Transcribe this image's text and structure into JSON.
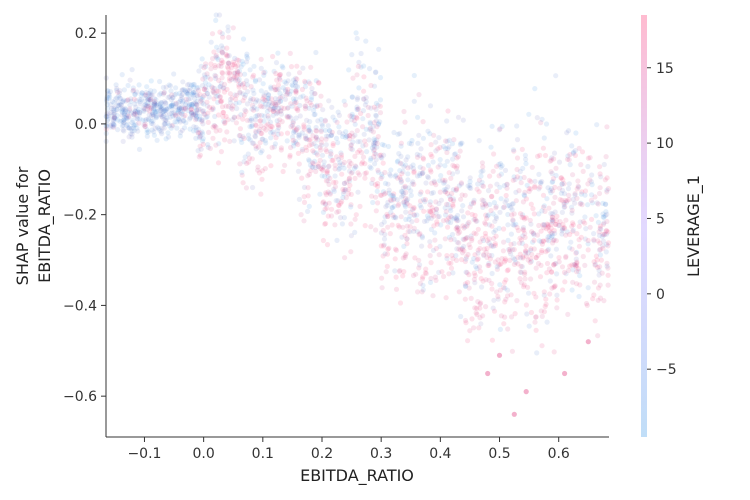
{
  "chart_data": {
    "type": "scatter",
    "title": "",
    "xlabel": "EBITDA_RATIO",
    "ylabel_lines": [
      "SHAP value for",
      "EBITDA_RATIO"
    ],
    "xlim": [
      -0.165,
      0.685
    ],
    "ylim": [
      -0.69,
      0.24
    ],
    "xticks": [
      -0.1,
      0.0,
      0.1,
      0.2,
      0.3,
      0.4,
      0.5,
      0.6
    ],
    "xtick_labels": [
      "−0.1",
      "0.0",
      "0.1",
      "0.2",
      "0.3",
      "0.4",
      "0.5",
      "0.6"
    ],
    "yticks": [
      0.2,
      0.0,
      -0.2,
      -0.4,
      -0.6
    ],
    "ytick_labels": [
      "0.2",
      "0.0",
      "−0.2",
      "−0.4",
      "−0.6"
    ],
    "grid": false,
    "color_feature": "LEVERAGE_1",
    "colorbar": {
      "label": "LEVERAGE_1",
      "range": [
        -9.5,
        18.5
      ],
      "ticks": [
        15,
        10,
        5,
        0,
        -5
      ],
      "tick_labels": [
        "15",
        "10",
        "5",
        "0",
        "−5"
      ],
      "color_low": "#1e88e5",
      "color_high": "#ff0d57"
    },
    "point_alpha": 0.12,
    "segments": [
      {
        "x_range": [
          -0.165,
          -0.06
        ],
        "mean": 0.025,
        "spread": 0.03,
        "high_frac": 0.05
      },
      {
        "x_range": [
          -0.06,
          -0.01
        ],
        "mean": 0.03,
        "spread": 0.03,
        "high_frac": 0.15
      },
      {
        "x_range": [
          -0.01,
          0.0
        ],
        "mean": 0.01,
        "spread": 0.05,
        "high_frac": 0.5
      },
      {
        "x_range": [
          0.0,
          0.03
        ],
        "mean": 0.08,
        "spread": 0.06,
        "high_frac": 0.55
      },
      {
        "x_range": [
          0.03,
          0.06
        ],
        "mean": 0.1,
        "spread": 0.06,
        "high_frac": 0.75
      },
      {
        "x_range": [
          0.06,
          0.1
        ],
        "mean": 0.02,
        "spread": 0.08,
        "high_frac": 0.45
      },
      {
        "x_range": [
          0.1,
          0.16
        ],
        "mean": 0.04,
        "spread": 0.05,
        "high_frac": 0.4
      },
      {
        "x_range": [
          0.16,
          0.2
        ],
        "mean": -0.03,
        "spread": 0.07,
        "high_frac": 0.45
      },
      {
        "x_range": [
          0.2,
          0.25
        ],
        "mean": -0.1,
        "spread": 0.08,
        "high_frac": 0.6
      },
      {
        "x_range": [
          0.25,
          0.3
        ],
        "mean": -0.02,
        "spread": 0.09,
        "high_frac": 0.45
      },
      {
        "x_range": [
          0.3,
          0.44
        ],
        "mean": -0.17,
        "spread": 0.09,
        "high_frac": 0.5
      },
      {
        "x_range": [
          0.44,
          0.52
        ],
        "mean": -0.24,
        "spread": 0.1,
        "high_frac": 0.6
      },
      {
        "x_range": [
          0.52,
          0.685
        ],
        "mean": -0.22,
        "spread": 0.1,
        "high_frac": 0.6
      }
    ],
    "outliers": [
      {
        "x": 0.525,
        "y": -0.64
      },
      {
        "x": 0.545,
        "y": -0.59
      },
      {
        "x": 0.48,
        "y": -0.55
      },
      {
        "x": 0.61,
        "y": -0.55
      },
      {
        "x": 0.65,
        "y": -0.48
      },
      {
        "x": 0.5,
        "y": -0.51
      }
    ]
  }
}
